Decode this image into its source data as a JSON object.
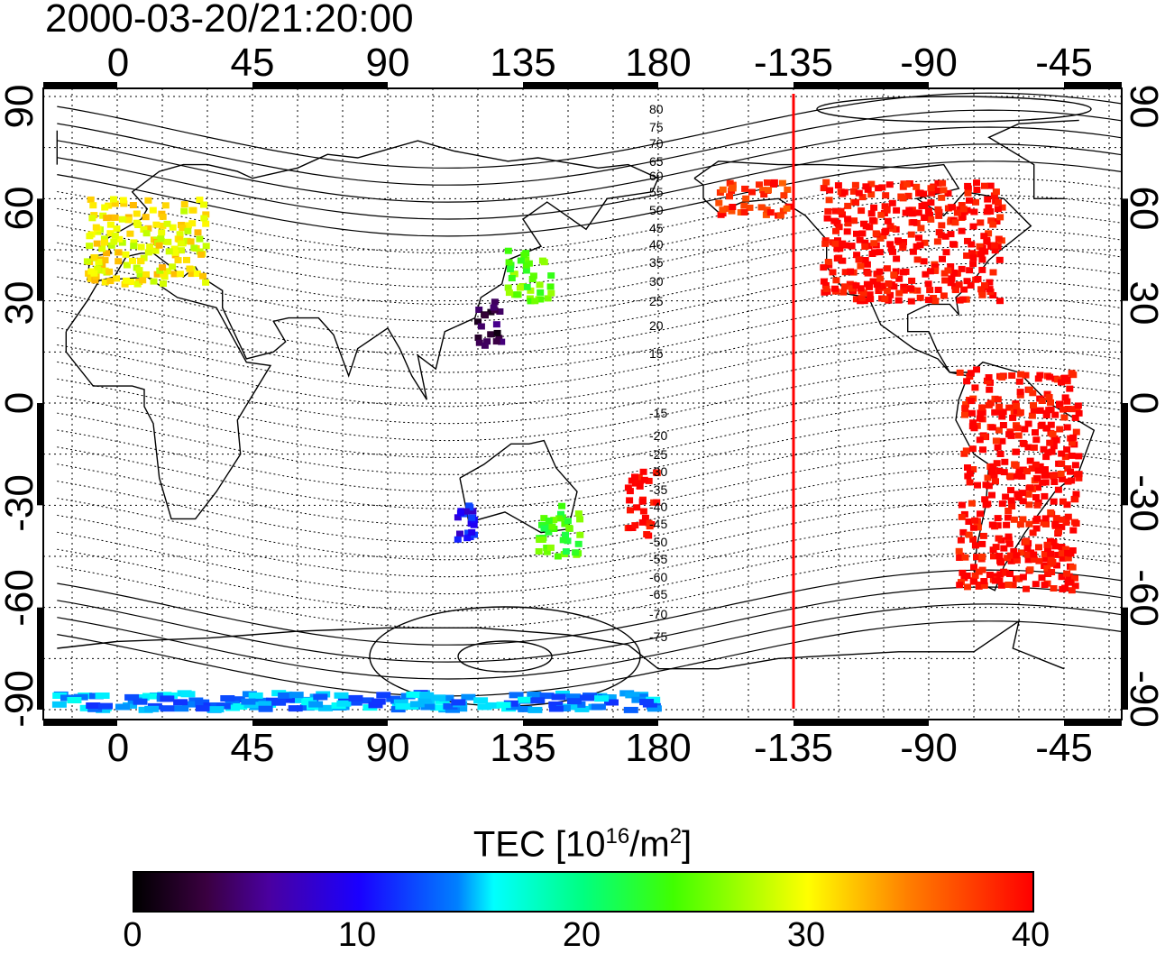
{
  "timestamp": "2000-03-20/21:20:00",
  "map": {
    "lon_ticks_top": [
      "0",
      "45",
      "90",
      "135",
      "180",
      "-135",
      "-90",
      "-45"
    ],
    "lon_ticks_bottom": [
      "0",
      "45",
      "90",
      "135",
      "180",
      "-135",
      "-90",
      "-45"
    ],
    "lat_ticks_left": [
      "90",
      "60",
      "30",
      "0",
      "-30",
      "-60",
      "-90"
    ],
    "lat_ticks_right": [
      "90",
      "60",
      "30",
      "0",
      "-30",
      "-60",
      "-90"
    ],
    "contour_labels": [
      "80",
      "75",
      "70",
      "65",
      "60",
      "55",
      "50",
      "45",
      "40",
      "35",
      "30",
      "25",
      "20",
      "15",
      "-15",
      "-20",
      "-25",
      "-30",
      "-35",
      "-40",
      "-45",
      "-50",
      "-55",
      "-60",
      "-65",
      "-70",
      "-75"
    ],
    "marker_line_longitude": -135,
    "marker_line_color": "#ff0000"
  },
  "colorbar": {
    "title_prefix": "TEC  [10",
    "title_exp1": "16",
    "title_mid": "/m",
    "title_exp2": "2",
    "title_suffix": "]",
    "min": 0,
    "max": 40,
    "ticks": [
      "0",
      "10",
      "20",
      "30",
      "40"
    ]
  },
  "chart_data": {
    "type": "heatmap",
    "variable": "TEC",
    "unit": "10^16/m^2",
    "range": [
      0,
      40
    ],
    "regions": [
      {
        "lat_range": [
          30,
          65
        ],
        "lon_range": [
          -125,
          -65
        ],
        "tec": 40
      },
      {
        "lat_range": [
          55,
          65
        ],
        "lon_range": [
          -160,
          -135
        ],
        "tec": 38
      },
      {
        "lat_range": [
          35,
          60
        ],
        "lon_range": [
          -10,
          30
        ],
        "tec": 30
      },
      {
        "lat_range": [
          30,
          45
        ],
        "lon_range": [
          130,
          145
        ],
        "tec": 25
      },
      {
        "lat_range": [
          15,
          30
        ],
        "lon_range": [
          120,
          128
        ],
        "tec": 3
      },
      {
        "lat_range": [
          -55,
          10
        ],
        "lon_range": [
          -80,
          -40
        ],
        "tec": 40
      },
      {
        "lat_range": [
          -40,
          -20
        ],
        "lon_range": [
          170,
          180
        ],
        "tec": 40
      },
      {
        "lat_range": [
          -40,
          -30
        ],
        "lon_range": [
          113,
          120
        ],
        "tec": 10
      },
      {
        "lat_range": [
          -45,
          -30
        ],
        "lon_range": [
          140,
          155
        ],
        "tec": 24
      },
      {
        "lat_range": [
          -90,
          -85
        ],
        "lon_range": [
          -20,
          180
        ],
        "tec": 14
      }
    ]
  }
}
